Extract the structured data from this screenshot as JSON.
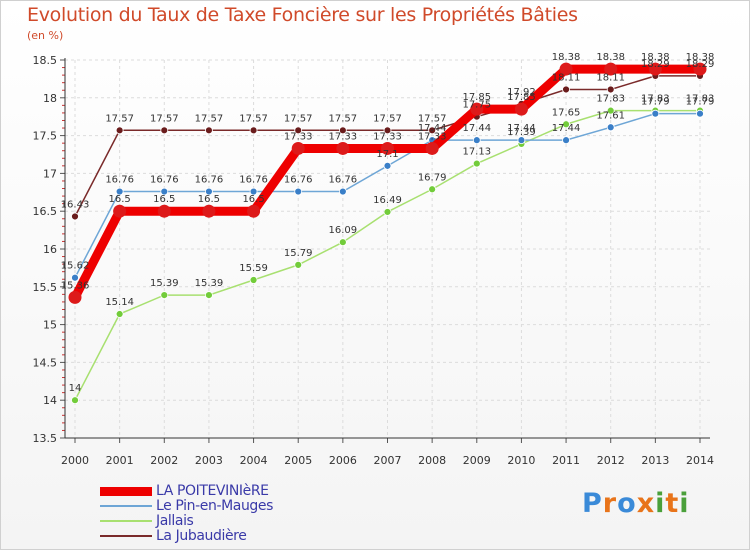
{
  "title": "Evolution du Taux de Taxe Foncière sur les Propriétés Bâties",
  "unit": "(en %)",
  "logo": {
    "text": "Proxiti",
    "colors": [
      "#3a8ad8",
      "#e8741a",
      "#3a8ad8",
      "#e8741a",
      "#4aa03a",
      "#e8741a",
      "#4aa03a"
    ]
  },
  "chart_data": {
    "type": "line",
    "title": "Evolution du Taux de Taxe Foncière sur les Propriétés Bâties",
    "ylabel": "(en %)",
    "xlabel": "",
    "ylim": [
      13.5,
      18.5
    ],
    "yticks": [
      "13.5",
      "14",
      "14.5",
      "15",
      "15.5",
      "16",
      "16.5",
      "17",
      "17.5",
      "18",
      "18.5"
    ],
    "categories": [
      "2000",
      "2001",
      "2002",
      "2003",
      "2004",
      "2005",
      "2006",
      "2007",
      "2008",
      "2009",
      "2010",
      "2011",
      "2012",
      "2013",
      "2014"
    ],
    "legend_position": "bottom-left",
    "series": [
      {
        "name": "LA POITEVINIèRE",
        "color": "#ee0000",
        "marker": "#dd1a1a",
        "values": [
          15.36,
          16.5,
          16.5,
          16.5,
          16.5,
          17.33,
          17.33,
          17.33,
          17.33,
          17.85,
          17.85,
          18.38,
          18.38,
          18.38,
          18.38
        ],
        "labels": [
          "15.36",
          "16.5",
          "16.5",
          "16.5",
          "16.5",
          "17.33",
          "17.33",
          "17.33",
          "17.33",
          "17.85",
          "17.85",
          "18.38",
          "18.38",
          "18.38",
          "18.38"
        ]
      },
      {
        "name": "Le Pin-en-Mauges",
        "color": "#6ea6d6",
        "marker": "#3a7fc8",
        "values": [
          15.62,
          16.76,
          16.76,
          16.76,
          16.76,
          16.76,
          16.76,
          17.1,
          17.44,
          17.44,
          17.44,
          17.44,
          17.61,
          17.79,
          17.79
        ],
        "labels": [
          "15.62",
          "16.76",
          "16.76",
          "16.76",
          "16.76",
          "16.76",
          "16.76",
          "17.1",
          "17.44",
          "17.44",
          "17.44",
          "17.44",
          "17.61",
          "17.79",
          "17.79"
        ]
      },
      {
        "name": "Jallais",
        "color": "#a8e070",
        "marker": "#72cc3a",
        "values": [
          14.0,
          15.14,
          15.39,
          15.39,
          15.59,
          15.79,
          16.09,
          16.49,
          16.79,
          17.13,
          17.39,
          17.65,
          17.83,
          17.83,
          17.83
        ],
        "labels": [
          "14",
          "15.14",
          "15.39",
          "15.39",
          "15.59",
          "15.79",
          "16.09",
          "16.49",
          "16.79",
          "17.13",
          "17.39",
          "17.65",
          "17.83",
          "17.83",
          "17.83"
        ]
      },
      {
        "name": "La Jubaudière",
        "color": "#7a2a2a",
        "marker": "#6a1c1c",
        "values": [
          16.43,
          17.57,
          17.57,
          17.57,
          17.57,
          17.57,
          17.57,
          17.57,
          17.57,
          17.75,
          17.92,
          18.11,
          18.11,
          18.29,
          18.29
        ],
        "labels": [
          "16.43",
          "17.57",
          "17.57",
          "17.57",
          "17.57",
          "17.57",
          "17.57",
          "17.57",
          "17.57",
          "17.75",
          "17.92",
          "18.11",
          "18.11",
          "18.29",
          "18.29"
        ]
      }
    ]
  }
}
